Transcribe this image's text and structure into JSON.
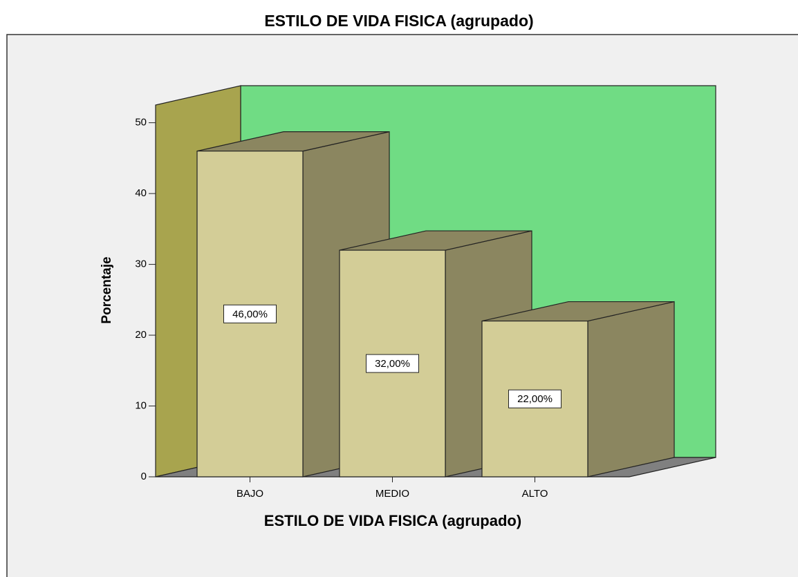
{
  "chart_data": {
    "type": "bar3d",
    "title": "ESTILO DE VIDA FISICA (agrupado)",
    "x_label": "ESTILO DE VIDA FISICA (agrupado)",
    "y_label": "Porcentaje",
    "categories": [
      "BAJO",
      "MEDIO",
      "ALTO"
    ],
    "values": [
      46,
      32,
      22
    ],
    "value_labels": [
      "46,00%",
      "32,00%",
      "22,00%"
    ],
    "color": "#d3cd97",
    "ylim": [
      0,
      52.5
    ],
    "yticks": [
      0,
      10,
      20,
      30,
      40,
      50
    ]
  }
}
